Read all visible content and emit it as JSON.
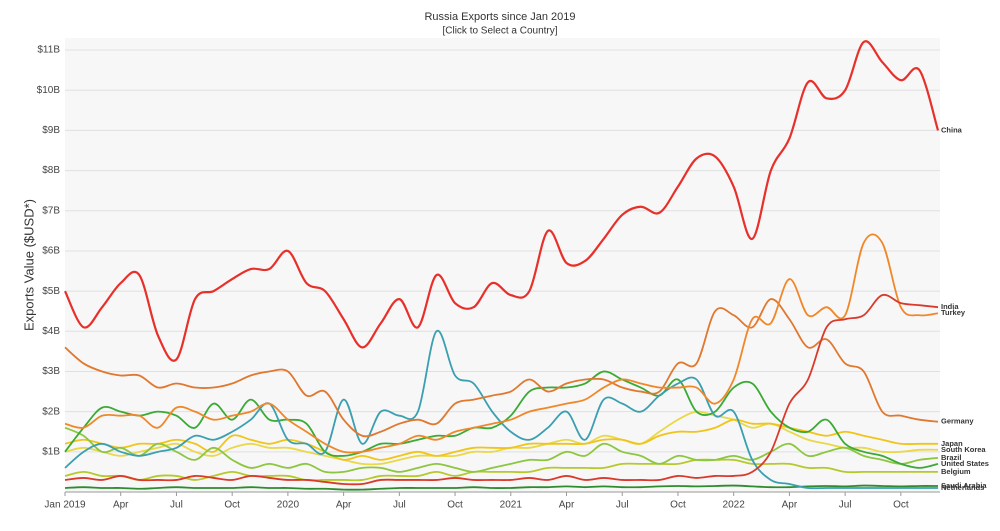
{
  "chart_data": {
    "type": "line",
    "title": "Russia Exports since Jan 2019",
    "subtitle": "[Click to Select a Country]",
    "y_label": "Exports Value ($USD*)",
    "categories": [
      "Jan 2019",
      null,
      null,
      "Apr",
      null,
      null,
      "Jul",
      null,
      null,
      "Oct",
      null,
      null,
      "2020",
      null,
      null,
      "Apr",
      null,
      null,
      "Jul",
      null,
      null,
      "Oct",
      null,
      null,
      "2021",
      null,
      null,
      "Apr",
      null,
      null,
      "Jul",
      null,
      null,
      "Oct",
      null,
      null,
      "2022",
      null,
      null,
      "Apr",
      null,
      null,
      "Jul",
      null,
      null,
      "Oct",
      null,
      null
    ],
    "ylim": [
      0,
      11.3
    ],
    "yticks": [
      {
        "value": 1,
        "label": "$1B"
      },
      {
        "value": 2,
        "label": "$2B"
      },
      {
        "value": 3,
        "label": "$3B"
      },
      {
        "value": 4,
        "label": "$4B"
      },
      {
        "value": 5,
        "label": "$5B"
      },
      {
        "value": 6,
        "label": "$6B"
      },
      {
        "value": 7,
        "label": "$7B"
      },
      {
        "value": 8,
        "label": "$8B"
      },
      {
        "value": 9,
        "label": "$9B"
      },
      {
        "value": 10,
        "label": "$10B"
      },
      {
        "value": 11,
        "label": "$11B"
      }
    ],
    "grid": true,
    "series": [
      {
        "name": "China",
        "color": "#e8302a",
        "values": [
          5.0,
          4.1,
          4.6,
          5.2,
          5.4,
          3.9,
          3.3,
          4.8,
          5.0,
          5.3,
          5.55,
          5.55,
          6.0,
          5.2,
          5.0,
          4.3,
          3.6,
          4.2,
          4.8,
          4.1,
          5.4,
          4.7,
          4.6,
          5.2,
          4.9,
          5.0,
          6.5,
          5.7,
          5.75,
          6.3,
          6.9,
          7.1,
          6.95,
          7.6,
          8.3,
          8.35,
          7.6,
          6.3,
          8.0,
          8.8,
          10.2,
          9.8,
          10.0,
          11.2,
          10.7,
          10.25,
          10.5,
          9.0
        ]
      },
      {
        "name": "India",
        "color": "#d93a2b",
        "values": [
          0.3,
          0.35,
          0.3,
          0.4,
          0.3,
          0.3,
          0.3,
          0.4,
          0.35,
          0.3,
          0.4,
          0.35,
          0.3,
          0.3,
          0.25,
          0.2,
          0.2,
          0.3,
          0.3,
          0.3,
          0.3,
          0.35,
          0.3,
          0.3,
          0.3,
          0.35,
          0.3,
          0.4,
          0.3,
          0.35,
          0.3,
          0.3,
          0.3,
          0.4,
          0.35,
          0.4,
          0.4,
          0.5,
          1.0,
          2.2,
          2.8,
          4.1,
          4.3,
          4.4,
          4.9,
          4.7,
          4.65,
          4.6
        ]
      },
      {
        "name": "Turkey",
        "color": "#f0882a",
        "values": [
          1.7,
          1.6,
          1.9,
          1.9,
          1.9,
          1.6,
          2.1,
          2.0,
          1.8,
          1.9,
          2.0,
          2.2,
          1.8,
          1.5,
          1.2,
          1.0,
          1.0,
          1.1,
          1.2,
          1.4,
          1.3,
          1.5,
          1.6,
          1.7,
          1.8,
          2.0,
          2.1,
          2.2,
          2.3,
          2.6,
          2.8,
          2.7,
          2.6,
          2.6,
          2.6,
          2.2,
          2.8,
          4.3,
          4.2,
          5.3,
          4.4,
          4.6,
          4.4,
          6.2,
          6.2,
          4.6,
          4.4,
          4.45
        ]
      },
      {
        "name": "Germany",
        "color": "#e0782f",
        "values": [
          3.6,
          3.2,
          3.0,
          2.9,
          2.9,
          2.6,
          2.7,
          2.6,
          2.6,
          2.7,
          2.9,
          3.0,
          3.0,
          2.4,
          2.5,
          1.8,
          1.4,
          1.5,
          1.7,
          1.8,
          1.7,
          2.2,
          2.3,
          2.4,
          2.5,
          2.8,
          2.5,
          2.7,
          2.8,
          2.8,
          2.6,
          2.5,
          2.5,
          3.2,
          3.2,
          4.5,
          4.4,
          4.1,
          4.8,
          4.3,
          3.6,
          3.8,
          3.2,
          3.0,
          2.0,
          1.9,
          1.8,
          1.75
        ]
      },
      {
        "name": "Netherlands",
        "color": "#3a9fb0",
        "values": [
          0.6,
          1.0,
          1.2,
          1.0,
          0.9,
          1.0,
          1.1,
          1.4,
          1.3,
          1.5,
          1.8,
          2.2,
          1.3,
          1.2,
          1.0,
          2.3,
          1.2,
          2.0,
          1.9,
          2.0,
          4.0,
          2.9,
          2.7,
          2.0,
          1.5,
          1.3,
          1.6,
          2.0,
          1.3,
          2.3,
          2.2,
          2.0,
          2.4,
          2.7,
          2.8,
          1.9,
          2.0,
          0.8,
          0.3,
          0.2,
          0.1,
          0.1,
          0.1,
          0.1,
          0.1,
          0.1,
          0.1,
          0.1
        ]
      },
      {
        "name": "United States",
        "color": "#3aaa35",
        "values": [
          1.0,
          1.6,
          2.1,
          2.0,
          1.9,
          2.0,
          1.9,
          1.6,
          2.2,
          1.8,
          2.3,
          1.8,
          1.8,
          1.7,
          1.0,
          0.9,
          1.0,
          1.2,
          1.2,
          1.3,
          1.4,
          1.4,
          1.6,
          1.6,
          1.9,
          2.5,
          2.6,
          2.6,
          2.7,
          3.0,
          2.8,
          2.6,
          2.4,
          2.8,
          2.0,
          2.0,
          2.6,
          2.7,
          2.0,
          1.6,
          1.5,
          1.8,
          1.2,
          1.0,
          0.9,
          0.7,
          0.6,
          0.7
        ]
      },
      {
        "name": "Brazil",
        "color": "#8dc63f",
        "values": [
          1.6,
          1.4,
          1.0,
          1.1,
          0.9,
          1.2,
          1.0,
          0.8,
          1.1,
          0.8,
          0.6,
          0.7,
          0.6,
          0.7,
          0.5,
          0.5,
          0.6,
          0.6,
          0.5,
          0.6,
          0.7,
          0.6,
          0.5,
          0.6,
          0.7,
          0.8,
          0.8,
          1.0,
          0.9,
          1.2,
          1.0,
          0.9,
          0.7,
          0.9,
          0.8,
          0.8,
          0.9,
          0.8,
          1.0,
          1.2,
          0.9,
          1.0,
          1.1,
          0.9,
          0.8,
          0.7,
          0.8,
          0.85
        ]
      },
      {
        "name": "Japan",
        "color": "#f0c419",
        "values": [
          1.2,
          1.3,
          1.2,
          1.1,
          1.2,
          1.2,
          1.3,
          1.2,
          1.0,
          1.4,
          1.3,
          1.2,
          1.3,
          1.2,
          1.0,
          0.8,
          0.9,
          0.8,
          0.9,
          1.0,
          0.9,
          1.0,
          1.1,
          1.1,
          1.1,
          1.2,
          1.2,
          1.2,
          1.2,
          1.3,
          1.3,
          1.2,
          1.4,
          1.5,
          1.5,
          1.6,
          1.8,
          1.7,
          1.7,
          1.6,
          1.5,
          1.4,
          1.5,
          1.4,
          1.3,
          1.2,
          1.2,
          1.2
        ]
      },
      {
        "name": "South Korea",
        "color": "#e8d84a",
        "values": [
          1.0,
          1.1,
          1.0,
          0.9,
          1.0,
          1.1,
          1.2,
          1.0,
          0.9,
          1.1,
          1.2,
          1.1,
          1.1,
          1.0,
          0.9,
          0.8,
          0.7,
          0.7,
          0.8,
          0.9,
          0.9,
          0.9,
          1.0,
          1.0,
          1.1,
          1.1,
          1.2,
          1.3,
          1.2,
          1.4,
          1.3,
          1.2,
          1.5,
          1.8,
          2.0,
          1.9,
          1.8,
          1.6,
          1.7,
          1.5,
          1.3,
          1.2,
          1.1,
          1.1,
          1.0,
          1.0,
          1.05,
          1.05
        ]
      },
      {
        "name": "Belgium",
        "color": "#b5c92b",
        "values": [
          0.4,
          0.5,
          0.4,
          0.4,
          0.3,
          0.4,
          0.4,
          0.3,
          0.4,
          0.5,
          0.4,
          0.4,
          0.4,
          0.3,
          0.3,
          0.3,
          0.3,
          0.4,
          0.4,
          0.4,
          0.5,
          0.4,
          0.5,
          0.5,
          0.5,
          0.5,
          0.6,
          0.6,
          0.6,
          0.6,
          0.7,
          0.7,
          0.7,
          0.7,
          0.8,
          0.8,
          0.8,
          0.7,
          0.7,
          0.7,
          0.6,
          0.6,
          0.5,
          0.5,
          0.5,
          0.5,
          0.5,
          0.5
        ]
      },
      {
        "name": "Saudi Arabia",
        "color": "#2e8b2e",
        "values": [
          0.1,
          0.12,
          0.1,
          0.1,
          0.08,
          0.1,
          0.12,
          0.1,
          0.1,
          0.1,
          0.12,
          0.1,
          0.1,
          0.08,
          0.08,
          0.06,
          0.06,
          0.08,
          0.1,
          0.1,
          0.1,
          0.1,
          0.12,
          0.1,
          0.1,
          0.12,
          0.12,
          0.14,
          0.12,
          0.14,
          0.12,
          0.12,
          0.14,
          0.15,
          0.14,
          0.15,
          0.16,
          0.14,
          0.12,
          0.12,
          0.14,
          0.15,
          0.14,
          0.16,
          0.15,
          0.14,
          0.15,
          0.15
        ]
      }
    ]
  }
}
